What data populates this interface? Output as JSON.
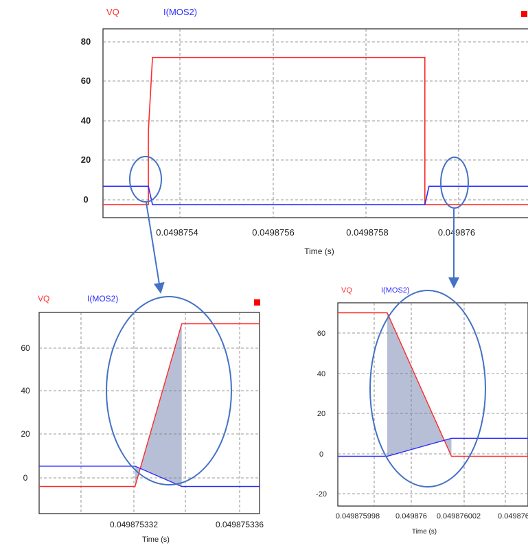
{
  "colors": {
    "vq": "#ff2a2a",
    "imos2": "#2b2bff",
    "annotation": "#4472c4",
    "shade": "#aab4cf",
    "grid": "#777777",
    "marker": "#ff0000"
  },
  "chart_data": [
    {
      "type": "line",
      "xlabel": "Time (s)",
      "ylabel": "",
      "grid": true,
      "ylim": [
        -6,
        86
      ],
      "y_ticks": [
        "80",
        "60",
        "40",
        "20",
        "0"
      ],
      "x_tick_labels": [
        "0.0498754",
        "0.0498756",
        "0.0498758",
        "0.049876"
      ],
      "series": [
        {
          "name": "VQ",
          "x": [
            0.04987522,
            0.04987533,
            0.04987533,
            0.04987534,
            0.049876,
            0.049876,
            0.049876,
            0.04987625
          ],
          "values": [
            0,
            0,
            36,
            72,
            72,
            36,
            0,
            0
          ]
        },
        {
          "name": "I(MOS2)",
          "x": [
            0.04987522,
            0.04987532,
            0.04987533,
            0.04987534,
            0.049876,
            0.049876,
            0.04987601,
            0.04987625
          ],
          "values": [
            9,
            9,
            9,
            0,
            0,
            0,
            9,
            9
          ]
        }
      ]
    },
    {
      "type": "line",
      "xlabel": "Time (s)",
      "ylabel": "",
      "grid": true,
      "ylim": [
        -12,
        77
      ],
      "y_ticks": [
        "60",
        "40",
        "20",
        "0"
      ],
      "x_tick_labels": [
        "0.049875332",
        "0.049875336"
      ],
      "series": [
        {
          "name": "VQ",
          "x": [
            0.0498753285,
            0.0498753322,
            0.049875334,
            0.049875337
          ],
          "values": [
            0,
            0,
            72,
            72
          ]
        },
        {
          "name": "I(MOS2)",
          "x": [
            0.0498753285,
            0.0498753322,
            0.049875334,
            0.049875337
          ],
          "values": [
            9,
            9,
            0,
            0
          ]
        }
      ]
    },
    {
      "type": "line",
      "xlabel": "Time (s)",
      "ylabel": "",
      "grid": true,
      "ylim": [
        -25,
        77
      ],
      "y_ticks": [
        "60",
        "40",
        "20",
        "0",
        "-20"
      ],
      "x_tick_labels": [
        "0.049875998",
        "0.049876",
        "0.049876002",
        "0.049876"
      ],
      "series": [
        {
          "name": "VQ",
          "x": [
            0.0498759983,
            0.0498760003,
            0.0498760029,
            0.049876006
          ],
          "values": [
            72,
            72,
            0,
            0
          ]
        },
        {
          "name": "I(MOS2)",
          "x": [
            0.0498759983,
            0.0498760003,
            0.0498760029,
            0.049876006
          ],
          "values": [
            0,
            0,
            9,
            9
          ]
        }
      ]
    }
  ]
}
